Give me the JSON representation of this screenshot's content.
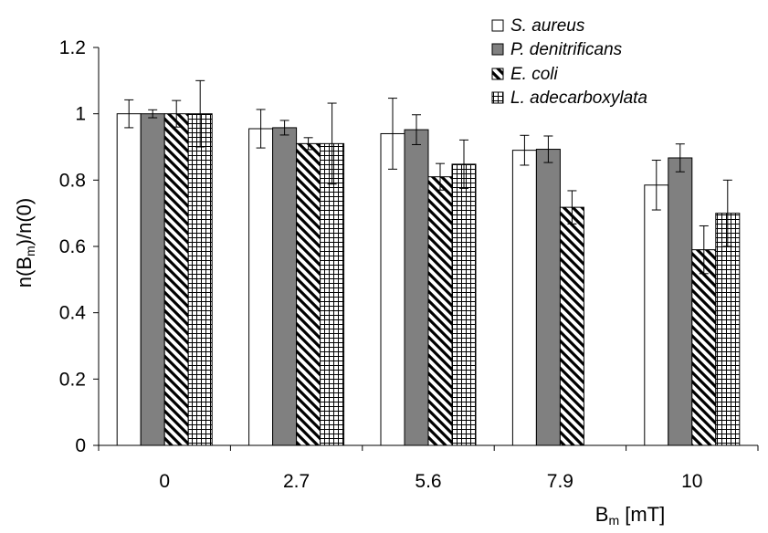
{
  "chart_data": {
    "type": "bar",
    "title": "",
    "xlabel": "Bₘ [mT]",
    "ylabel": "n(Bₘ)/n(0)",
    "xlabel_parts": {
      "main": "B",
      "sub": "m",
      "rest": " [mT]"
    },
    "ylabel_parts": {
      "main": "n(B",
      "sub": "m",
      "rest": ")/n(0)"
    },
    "categories": [
      "0",
      "2.7",
      "5.6",
      "7.9",
      "10"
    ],
    "ylim": [
      0,
      1.2
    ],
    "yticks": [
      "0",
      "0.2",
      "0.4",
      "0.6",
      "0.8",
      "1",
      "1.2"
    ],
    "grid": false,
    "legend_position": "top-right",
    "series": [
      {
        "name": "S. aureus",
        "pattern": "white",
        "values": [
          1.0,
          0.955,
          0.94,
          0.89,
          0.785
        ],
        "errors": [
          0.042,
          0.058,
          0.107,
          0.045,
          0.075
        ]
      },
      {
        "name": "P. denitrificans",
        "pattern": "gray",
        "values": [
          1.0,
          0.958,
          0.952,
          0.893,
          0.867
        ],
        "errors": [
          0.012,
          0.022,
          0.045,
          0.04,
          0.042
        ]
      },
      {
        "name": "E. coli",
        "pattern": "diagonal",
        "values": [
          1.0,
          0.91,
          0.81,
          0.718,
          0.59
        ],
        "errors": [
          0.04,
          0.018,
          0.04,
          0.05,
          0.072
        ]
      },
      {
        "name": "L. adecarboxylata",
        "pattern": "grid",
        "values": [
          1.0,
          0.91,
          0.848,
          null,
          0.7
        ],
        "errors": [
          0.1,
          0.122,
          0.073,
          null,
          0.1
        ]
      }
    ],
    "colors": {
      "white": "#ffffff",
      "gray": "#808080",
      "ink": "#000000"
    }
  }
}
